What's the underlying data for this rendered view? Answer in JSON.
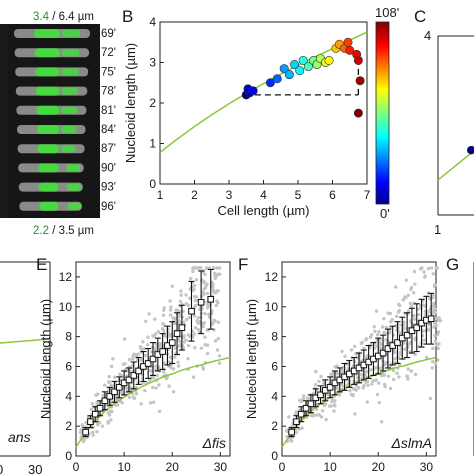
{
  "panel_a": {
    "top_label_green": "3.4",
    "top_label_rest": " / 6.4 µm",
    "bottom_label_green": "2.2",
    "bottom_label_rest": " / 3.5 µm",
    "times": [
      "69'",
      "72'",
      "75'",
      "78'",
      "81'",
      "84'",
      "87'",
      "90'",
      "93'",
      "96'"
    ]
  },
  "panel_b": {
    "letter": "B",
    "colorbar": {
      "top": "108'",
      "bottom": "0'"
    }
  },
  "panel_c": {
    "letter": "C",
    "ytick_partial": "4",
    "xtick_partial": "1"
  },
  "panel_e": {
    "letter": "E",
    "annotation": "Δfis"
  },
  "panel_f": {
    "letter": "F",
    "annotation": "ΔslmA"
  },
  "panel_g": {
    "letter": "G"
  },
  "panel_d": {
    "annotation_partial": "ans",
    "xtick_partial": "30",
    "xtick_partial_2": "0"
  },
  "colors": {
    "fit": "#8dc63f",
    "points": "#c4c4c4",
    "cell_green": "#3fe03a",
    "cell_gray": "#8a8a8a"
  },
  "chart_data": [
    {
      "type": "scatter",
      "panel": "B",
      "xlabel": "Cell length (µm)",
      "ylabel": "Nucleoid length (µm)",
      "xlim": [
        1,
        7
      ],
      "ylim": [
        0,
        4
      ],
      "xticks": [
        1,
        2,
        3,
        4,
        5,
        6,
        7
      ],
      "yticks": [
        0,
        1,
        2,
        3,
        4
      ],
      "fit_curve": {
        "x": [
          1.0,
          1.5,
          2.0,
          2.5,
          3.0,
          3.5,
          4.0,
          4.5,
          5.0,
          5.5,
          6.0,
          6.5,
          7.0
        ],
        "y": [
          0.78,
          1.11,
          1.42,
          1.71,
          1.98,
          2.24,
          2.48,
          2.71,
          2.93,
          3.14,
          3.34,
          3.55,
          3.75
        ]
      },
      "dashed_segments": [
        {
          "x": [
            3.75,
            6.75
          ],
          "y": [
            2.2,
            2.2
          ]
        },
        {
          "x": [
            6.75,
            6.75
          ],
          "y": [
            2.2,
            3.0
          ]
        }
      ],
      "points": [
        {
          "x": 3.5,
          "y": 2.2,
          "t": 0
        },
        {
          "x": 3.6,
          "y": 2.25,
          "t": 4
        },
        {
          "x": 3.55,
          "y": 2.35,
          "t": 8
        },
        {
          "x": 3.7,
          "y": 2.3,
          "t": 12
        },
        {
          "x": 4.2,
          "y": 2.5,
          "t": 18
        },
        {
          "x": 4.4,
          "y": 2.6,
          "t": 24
        },
        {
          "x": 4.6,
          "y": 2.85,
          "t": 30
        },
        {
          "x": 4.75,
          "y": 2.7,
          "t": 33
        },
        {
          "x": 4.9,
          "y": 2.95,
          "t": 36
        },
        {
          "x": 5.05,
          "y": 2.8,
          "t": 40
        },
        {
          "x": 5.15,
          "y": 3.05,
          "t": 44
        },
        {
          "x": 5.3,
          "y": 2.9,
          "t": 48
        },
        {
          "x": 5.45,
          "y": 3.05,
          "t": 52
        },
        {
          "x": 5.55,
          "y": 2.95,
          "t": 56
        },
        {
          "x": 5.65,
          "y": 3.1,
          "t": 60
        },
        {
          "x": 5.8,
          "y": 3.0,
          "t": 64
        },
        {
          "x": 5.9,
          "y": 3.05,
          "t": 68
        },
        {
          "x": 6.1,
          "y": 3.35,
          "t": 74
        },
        {
          "x": 6.2,
          "y": 3.45,
          "t": 78
        },
        {
          "x": 6.35,
          "y": 3.35,
          "t": 84
        },
        {
          "x": 6.45,
          "y": 3.5,
          "t": 88
        },
        {
          "x": 6.5,
          "y": 3.3,
          "t": 92
        },
        {
          "x": 6.7,
          "y": 3.2,
          "t": 96
        },
        {
          "x": 6.75,
          "y": 3.05,
          "t": 100
        },
        {
          "x": 6.8,
          "y": 2.55,
          "t": 104
        },
        {
          "x": 6.75,
          "y": 1.75,
          "t": 108
        }
      ]
    },
    {
      "type": "scatter",
      "panel": "E",
      "xlabel": "Cell length (µm)",
      "ylabel": "Nucleoid length (µm)",
      "xlim": [
        0,
        32
      ],
      "ylim": [
        0,
        13
      ],
      "xticks": [
        0,
        10,
        20,
        30
      ],
      "yticks": [
        0,
        2,
        4,
        6,
        8,
        10,
        12
      ],
      "fit_curve": {
        "x": [
          0,
          2,
          4,
          6,
          8,
          10,
          12,
          14,
          16,
          18,
          20,
          22,
          24,
          26,
          28,
          30,
          32
        ],
        "y": [
          0.6,
          1.55,
          2.35,
          3.0,
          3.5,
          3.95,
          4.35,
          4.7,
          5.0,
          5.3,
          5.5,
          5.75,
          5.95,
          6.1,
          6.3,
          6.45,
          6.6
        ]
      },
      "binned": {
        "x": [
          2,
          3,
          4,
          5,
          6,
          7,
          8,
          9,
          10,
          11,
          12,
          13,
          14,
          15,
          16,
          17,
          18,
          19,
          20,
          21,
          22,
          24,
          26,
          28
        ],
        "y": [
          1.6,
          2.3,
          2.8,
          3.2,
          3.7,
          4.0,
          4.3,
          4.6,
          4.9,
          5.1,
          5.4,
          5.7,
          6.0,
          6.2,
          6.5,
          6.8,
          7.0,
          7.4,
          7.6,
          8.2,
          8.6,
          9.7,
          10.3,
          10.5
        ],
        "err": [
          0.3,
          0.4,
          0.5,
          0.5,
          0.6,
          0.6,
          0.7,
          0.7,
          0.8,
          0.8,
          0.9,
          0.9,
          1.0,
          1.0,
          1.1,
          1.1,
          1.2,
          1.3,
          1.4,
          1.4,
          1.5,
          2.0,
          2.1,
          2.0
        ]
      },
      "scatter_seed": 7,
      "annotation": "Δfis"
    },
    {
      "type": "scatter",
      "panel": "F",
      "xlabel": "Cell length (µm)",
      "ylabel": "Nucleoid length (µm)",
      "xlim": [
        0,
        32
      ],
      "ylim": [
        0,
        13
      ],
      "xticks": [
        0,
        10,
        20,
        30
      ],
      "yticks": [
        0,
        2,
        4,
        6,
        8,
        10,
        12
      ],
      "fit_curve": {
        "x": [
          0,
          2,
          4,
          6,
          8,
          10,
          12,
          14,
          16,
          18,
          20,
          22,
          24,
          26,
          28,
          30,
          32
        ],
        "y": [
          0.6,
          1.55,
          2.35,
          3.0,
          3.5,
          3.95,
          4.35,
          4.7,
          5.0,
          5.3,
          5.5,
          5.75,
          5.95,
          6.1,
          6.3,
          6.45,
          6.6
        ]
      },
      "binned": {
        "x": [
          2,
          3,
          4,
          5,
          6,
          7,
          8,
          9,
          10,
          11,
          12,
          13,
          14,
          15,
          16,
          17,
          18,
          19,
          20,
          21,
          22,
          23,
          24,
          25,
          26,
          27,
          28,
          29,
          30,
          31
        ],
        "y": [
          1.6,
          2.3,
          2.8,
          3.2,
          3.5,
          3.9,
          4.1,
          4.4,
          4.6,
          4.9,
          5.1,
          5.3,
          5.5,
          5.7,
          5.9,
          6.1,
          6.3,
          6.5,
          6.7,
          6.9,
          7.2,
          7.4,
          7.6,
          7.9,
          8.1,
          8.4,
          8.6,
          8.9,
          9.1,
          9.2
        ],
        "err": [
          0.3,
          0.4,
          0.5,
          0.5,
          0.6,
          0.6,
          0.6,
          0.7,
          0.7,
          0.8,
          0.8,
          0.9,
          0.9,
          0.9,
          1.0,
          1.0,
          1.1,
          1.1,
          1.2,
          1.2,
          1.3,
          1.3,
          1.4,
          1.4,
          1.5,
          1.5,
          1.6,
          1.6,
          1.6,
          1.7
        ]
      },
      "scatter_seed": 13,
      "annotation": "ΔslmA"
    },
    {
      "type": "scatter",
      "panel": "C",
      "partial": true,
      "fit_curve": {
        "x": [
          1,
          2,
          3
        ],
        "y": [
          0.78,
          1.42,
          1.98
        ]
      },
      "points": [
        {
          "x": 1.95,
          "y": 1.45,
          "t": 0
        }
      ]
    }
  ]
}
